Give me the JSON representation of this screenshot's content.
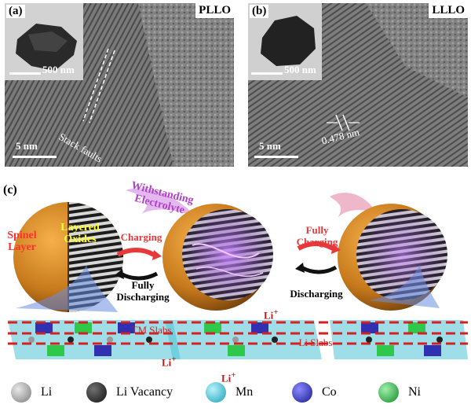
{
  "panel_a": {
    "label": "(a)",
    "title": "PLLO",
    "inset_scale": "500 nm",
    "scale": "5 nm",
    "annotation": "Stack faults"
  },
  "panel_b": {
    "label": "(b)",
    "title": "LLLO",
    "inset_scale": "500 nm",
    "scale": "5 nm",
    "annotation": "0.478 nm"
  },
  "panel_c": {
    "label": "(c)",
    "spinel_layer": "Spinel Layer",
    "layered_oxides": "Layered Oxides",
    "withstanding_electrolyte": "Withstanding Electrolyte",
    "charging": "Charging",
    "fully_discharging": "Fully Discharging",
    "fully_charging": "Fully Charging",
    "discharging": "Discharging",
    "tm_slabs": "TM Slabs",
    "li_slabs": "Li Slabs",
    "li_plus": "Li",
    "plus": "+"
  },
  "legend": [
    {
      "label": "Li",
      "color": "#9a9a9a"
    },
    {
      "label": "Li Vacancy",
      "color": "#2a2a2a"
    },
    {
      "label": "Mn",
      "color": "#3ec6d6"
    },
    {
      "label": "Co",
      "color": "#2a2ab8"
    },
    {
      "label": "Ni",
      "color": "#2ec84a"
    }
  ],
  "colors": {
    "arrow_red": "#e8393a",
    "dashed_red": "#d42020",
    "spinel_text": "#ff3030",
    "layered_text": "#ffff30",
    "electrolyte_text": "#b040c8"
  }
}
